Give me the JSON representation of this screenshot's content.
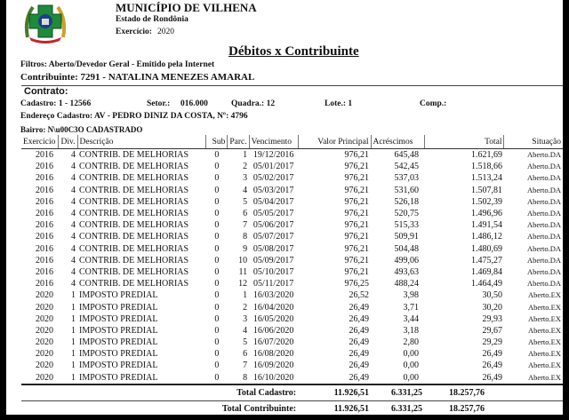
{
  "header": {
    "municipality": "MUNICÍPIO DE VILHENA",
    "state": "Estado de Rondônia",
    "exercise_label": "Exercício:",
    "exercise_value": "2020"
  },
  "report": {
    "title": "Débitos x Contribuinte",
    "filters": "Filtros:  Aberto/Devedor Geral  -  Emitido pela Internet",
    "taxpayer": "Contribuinte: 7291 - NATALINA MENEZES AMARAL"
  },
  "contract": {
    "heading": "Contrato:",
    "cadastro": "Cadastro: 1 - 12566",
    "setor_label": "Setor.:",
    "setor_value": "016.000",
    "quadra": "Quadra.: 12",
    "lote": "Lote.:  1",
    "comp": "Comp.:",
    "address": "Endereço Cadastro: AV - PEDRO DINIZ DA COSTA, Nº: 4796",
    "bairro": "Bairro: N\\u00C3O CADASTRADO"
  },
  "table": {
    "columns": [
      "Exercicio",
      "Div.",
      "Descrição",
      "Sub",
      "Parc.",
      "Vencimento",
      "Valor Principal",
      "Acréscimos",
      "Total",
      "Situação"
    ],
    "rows": [
      [
        "2016",
        "4",
        "CONTRIB. DE MELHORIAS",
        "0",
        "1",
        "19/12/2016",
        "976,21",
        "645,48",
        "1.621,69",
        "Aberto.DA"
      ],
      [
        "2016",
        "4",
        "CONTRIB. DE MELHORIAS",
        "0",
        "2",
        "05/01/2017",
        "976,21",
        "542,45",
        "1.518,66",
        "Aberto.DA"
      ],
      [
        "2016",
        "4",
        "CONTRIB. DE MELHORIAS",
        "0",
        "3",
        "05/02/2017",
        "976,21",
        "537,03",
        "1.513,24",
        "Aberto.DA"
      ],
      [
        "2016",
        "4",
        "CONTRIB. DE MELHORIAS",
        "0",
        "4",
        "05/03/2017",
        "976,21",
        "531,60",
        "1.507,81",
        "Aberto.DA"
      ],
      [
        "2016",
        "4",
        "CONTRIB. DE MELHORIAS",
        "0",
        "5",
        "05/04/2017",
        "976,21",
        "526,18",
        "1.502,39",
        "Aberto.DA"
      ],
      [
        "2016",
        "4",
        "CONTRIB. DE MELHORIAS",
        "0",
        "6",
        "05/05/2017",
        "976,21",
        "520,75",
        "1.496,96",
        "Aberto.DA"
      ],
      [
        "2016",
        "4",
        "CONTRIB. DE MELHORIAS",
        "0",
        "7",
        "05/06/2017",
        "976,21",
        "515,33",
        "1.491,54",
        "Aberto.DA"
      ],
      [
        "2016",
        "4",
        "CONTRIB. DE MELHORIAS",
        "0",
        "8",
        "05/07/2017",
        "976,21",
        "509,91",
        "1.486,12",
        "Aberto.DA"
      ],
      [
        "2016",
        "4",
        "CONTRIB. DE MELHORIAS",
        "0",
        "9",
        "05/08/2017",
        "976,21",
        "504,48",
        "1.480,69",
        "Aberto.DA"
      ],
      [
        "2016",
        "4",
        "CONTRIB. DE MELHORIAS",
        "0",
        "10",
        "05/09/2017",
        "976,21",
        "499,06",
        "1.475,27",
        "Aberto.DA"
      ],
      [
        "2016",
        "4",
        "CONTRIB. DE MELHORIAS",
        "0",
        "11",
        "05/10/2017",
        "976,21",
        "493,63",
        "1.469,84",
        "Aberto.DA"
      ],
      [
        "2016",
        "4",
        "CONTRIB. DE MELHORIAS",
        "0",
        "12",
        "05/11/2017",
        "976,25",
        "488,24",
        "1.464,49",
        "Aberto.DA"
      ],
      [
        "2020",
        "1",
        "IMPOSTO PREDIAL",
        "0",
        "1",
        "16/03/2020",
        "26,52",
        "3,98",
        "30,50",
        "Aberto.EX"
      ],
      [
        "2020",
        "1",
        "IMPOSTO PREDIAL",
        "0",
        "2",
        "16/04/2020",
        "26,49",
        "3,71",
        "30,20",
        "Aberto.EX"
      ],
      [
        "2020",
        "1",
        "IMPOSTO PREDIAL",
        "0",
        "3",
        "16/05/2020",
        "26,49",
        "3,44",
        "29,93",
        "Aberto.EX"
      ],
      [
        "2020",
        "1",
        "IMPOSTO PREDIAL",
        "0",
        "4",
        "16/06/2020",
        "26,49",
        "3,18",
        "29,67",
        "Aberto.EX"
      ],
      [
        "2020",
        "1",
        "IMPOSTO PREDIAL",
        "0",
        "5",
        "16/07/2020",
        "26,49",
        "2,80",
        "29,29",
        "Aberto.EX"
      ],
      [
        "2020",
        "1",
        "IMPOSTO PREDIAL",
        "0",
        "6",
        "16/08/2020",
        "26,49",
        "0,00",
        "26,49",
        "Aberto.EX"
      ],
      [
        "2020",
        "1",
        "IMPOSTO PREDIAL",
        "0",
        "7",
        "16/09/2020",
        "26,49",
        "0,00",
        "26,49",
        "Aberto.EX"
      ],
      [
        "2020",
        "1",
        "IMPOSTO PREDIAL",
        "0",
        "8",
        "16/10/2020",
        "26,49",
        "0,00",
        "26,49",
        "Aberto.EX"
      ]
    ]
  },
  "totals": {
    "cadastro": {
      "label": "Total Cadastro:",
      "principal": "11.926,51",
      "acrescimos": "6.331,25",
      "total": "18.257,76"
    },
    "contribuinte": {
      "label": "Total Contribuinte:",
      "principal": "11.926,51",
      "acrescimos": "6.331,25",
      "total": "18.257,76"
    }
  }
}
